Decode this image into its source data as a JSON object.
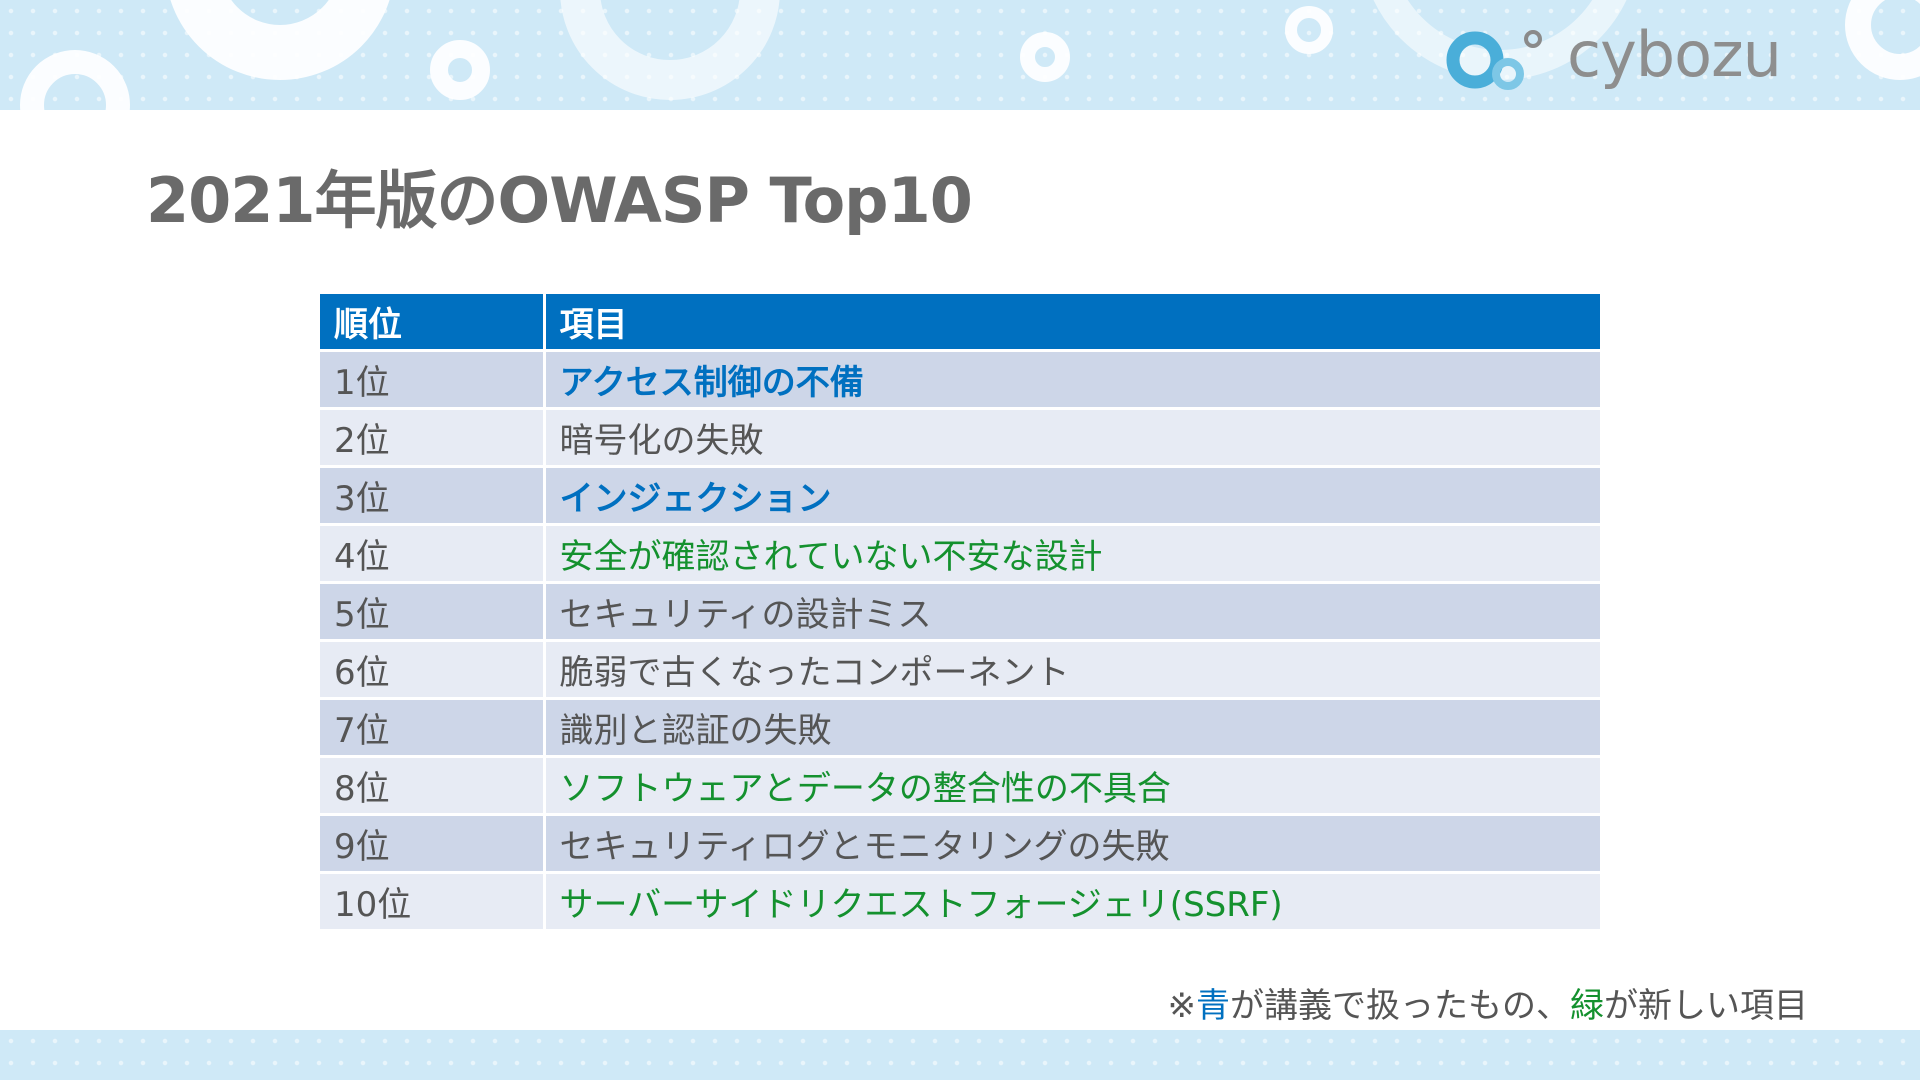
{
  "logo": {
    "text": "cybozu"
  },
  "slide": {
    "title": "2021年版のOWASP Top10"
  },
  "table": {
    "headers": [
      "順位",
      "項目"
    ],
    "rows": [
      {
        "rank": "1位",
        "item": "アクセス制御の不備",
        "style": "blue"
      },
      {
        "rank": "2位",
        "item": "暗号化の失敗",
        "style": "normal"
      },
      {
        "rank": "3位",
        "item": "インジェクション",
        "style": "blue"
      },
      {
        "rank": "4位",
        "item": "安全が確認されていない不安な設計",
        "style": "green"
      },
      {
        "rank": "5位",
        "item": "セキュリティの設計ミス",
        "style": "normal"
      },
      {
        "rank": "6位",
        "item": "脆弱で古くなったコンポーネント",
        "style": "normal"
      },
      {
        "rank": "7位",
        "item": "識別と認証の失敗",
        "style": "normal"
      },
      {
        "rank": "8位",
        "item": "ソフトウェアとデータの整合性の不具合",
        "style": "green"
      },
      {
        "rank": "9位",
        "item": "セキュリティログとモニタリングの失敗",
        "style": "normal"
      },
      {
        "rank": "10位",
        "item": "サーバーサイドリクエストフォージェリ(SSRF)",
        "style": "green"
      }
    ]
  },
  "footnote": {
    "prefix": "※",
    "blue_word": "青",
    "middle": "が講義で扱ったもの、",
    "green_word": "緑",
    "suffix": "が新しい項目"
  },
  "colors": {
    "blue": "#0070c0",
    "green": "#14912e",
    "header_bg": "#0070c0",
    "row_dark": "#cdd6e8",
    "row_light": "#e7ebf4",
    "band": "#cfe9f7"
  }
}
